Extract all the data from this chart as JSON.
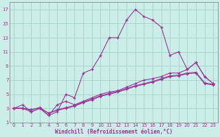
{
  "xlabel": "Windchill (Refroidissement éolien,°C)",
  "bg_color": "#cceee8",
  "grid_color": "#aad4cc",
  "line_color": "#993399",
  "spine_color": "#888888",
  "xlim": [
    -0.5,
    23.5
  ],
  "ylim": [
    1,
    18
  ],
  "xticks": [
    0,
    1,
    2,
    3,
    4,
    5,
    6,
    7,
    8,
    9,
    10,
    11,
    12,
    13,
    14,
    15,
    16,
    17,
    18,
    19,
    20,
    21,
    22,
    23
  ],
  "yticks": [
    1,
    3,
    5,
    7,
    9,
    11,
    13,
    15,
    17
  ],
  "line1_x": [
    0,
    1,
    2,
    3,
    4,
    5,
    6,
    7,
    8,
    9,
    10,
    11,
    12,
    13,
    14,
    15,
    16,
    17,
    18,
    19,
    20,
    21,
    22,
    23
  ],
  "line1_y": [
    3.0,
    3.5,
    2.5,
    3.0,
    2.0,
    2.5,
    5.0,
    4.5,
    8.0,
    8.5,
    10.5,
    13.0,
    13.0,
    15.5,
    17.0,
    16.0,
    15.5,
    14.5,
    10.5,
    11.0,
    8.5,
    9.5,
    7.5,
    6.5
  ],
  "line2_x": [
    0,
    1,
    2,
    3,
    4,
    5,
    6,
    7,
    8,
    9,
    10,
    11,
    12,
    13,
    14,
    15,
    16,
    17,
    18,
    19,
    20,
    21,
    22,
    23
  ],
  "line2_y": [
    3.0,
    3.0,
    2.5,
    3.0,
    2.0,
    3.5,
    4.0,
    3.5,
    4.0,
    4.5,
    5.0,
    5.3,
    5.5,
    6.0,
    6.5,
    7.0,
    7.2,
    7.5,
    8.0,
    8.0,
    8.5,
    9.5,
    7.5,
    6.5
  ],
  "line3_x": [
    0,
    1,
    2,
    3,
    4,
    5,
    6,
    7,
    8,
    9,
    10,
    11,
    12,
    13,
    14,
    15,
    16,
    17,
    18,
    19,
    20,
    21,
    22,
    23
  ],
  "line3_y": [
    3.0,
    3.0,
    2.8,
    3.1,
    2.3,
    2.7,
    3.0,
    3.3,
    3.8,
    4.2,
    4.7,
    5.0,
    5.3,
    5.7,
    6.1,
    6.4,
    6.7,
    7.1,
    7.5,
    7.6,
    7.9,
    8.0,
    6.5,
    6.3
  ],
  "line4_x": [
    0,
    1,
    2,
    3,
    4,
    5,
    6,
    7,
    8,
    9,
    10,
    11,
    12,
    13,
    14,
    15,
    16,
    17,
    18,
    19,
    20,
    21,
    22,
    23
  ],
  "line4_y": [
    3.0,
    3.0,
    2.8,
    3.1,
    2.3,
    2.8,
    3.1,
    3.4,
    3.9,
    4.3,
    4.8,
    5.1,
    5.4,
    5.8,
    6.2,
    6.5,
    6.8,
    7.2,
    7.6,
    7.7,
    8.0,
    8.1,
    6.6,
    6.4
  ]
}
